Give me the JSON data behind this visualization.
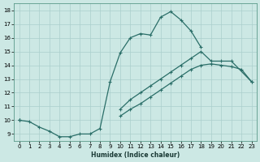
{
  "xlabel": "Humidex (Indice chaleur)",
  "background_color": "#cce8e4",
  "grid_color": "#aacfcc",
  "line_color": "#2a6e68",
  "xlim": [
    -0.5,
    23.5
  ],
  "ylim": [
    8.5,
    18.5
  ],
  "xticks": [
    0,
    1,
    2,
    3,
    4,
    5,
    6,
    7,
    8,
    9,
    10,
    11,
    12,
    13,
    14,
    15,
    16,
    17,
    18,
    19,
    20,
    21,
    22,
    23
  ],
  "yticks": [
    9,
    10,
    11,
    12,
    13,
    14,
    15,
    16,
    17,
    18
  ],
  "curve1_x": [
    0,
    1,
    2,
    3,
    4,
    5,
    6,
    7,
    8,
    9,
    10,
    11,
    12,
    13,
    14,
    15,
    16,
    17,
    18
  ],
  "curve1_y": [
    10.0,
    9.9,
    9.5,
    9.2,
    8.8,
    8.8,
    9.0,
    9.0,
    9.4,
    12.8,
    14.9,
    16.0,
    16.3,
    16.2,
    17.5,
    17.9,
    17.3,
    16.5,
    15.3
  ],
  "curve2_x": [
    0,
    10,
    11,
    12,
    13,
    14,
    15,
    16,
    17,
    18,
    19,
    20,
    21,
    23
  ],
  "curve2_y": [
    10.0,
    10.8,
    11.5,
    12.0,
    12.5,
    13.0,
    13.5,
    14.0,
    14.5,
    15.0,
    14.3,
    14.3,
    14.3,
    12.8
  ],
  "curve3_x": [
    0,
    10,
    11,
    12,
    13,
    14,
    15,
    16,
    17,
    18,
    19,
    20,
    21,
    22,
    23
  ],
  "curve3_y": [
    10.0,
    10.3,
    10.8,
    11.2,
    11.7,
    12.2,
    12.7,
    13.2,
    13.7,
    14.0,
    14.1,
    14.0,
    13.9,
    13.7,
    12.8
  ],
  "marker": "+",
  "markersize": 3.5,
  "linewidth": 0.9
}
